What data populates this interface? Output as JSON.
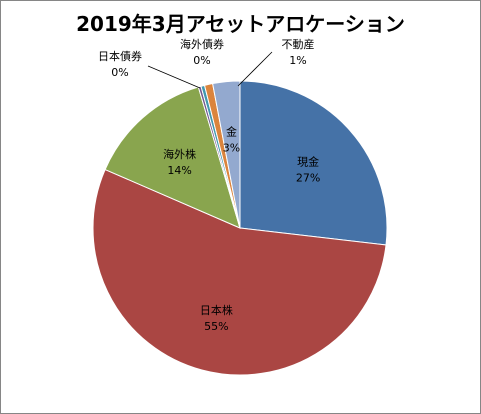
{
  "chart_data": {
    "type": "pie",
    "title": "2019年3月アセットアロケーション",
    "start_angle_deg": 0,
    "direction": "clockwise",
    "slices": [
      {
        "label": "現金",
        "value": 27,
        "display": "27%",
        "color": "#4572A7",
        "label_placement": "inside"
      },
      {
        "label": "日本株",
        "value": 55,
        "display": "55%",
        "color": "#AA4643",
        "label_placement": "inside"
      },
      {
        "label": "海外株",
        "value": 14,
        "display": "14%",
        "color": "#89A54E",
        "label_placement": "inside"
      },
      {
        "label": "日本債券",
        "value": 0.3,
        "display": "0%",
        "color": "#71588F",
        "label_placement": "outside-left"
      },
      {
        "label": "海外債券",
        "value": 0.4,
        "display": "0%",
        "color": "#4198AF",
        "label_placement": "outside-top"
      },
      {
        "label": "不動産",
        "value": 0.9,
        "display": "1%",
        "color": "#DB843D",
        "label_placement": "outside-top-right"
      },
      {
        "label": "金",
        "value": 3,
        "display": "3%",
        "color": "#93A9CF",
        "label_placement": "inside"
      }
    ],
    "legend": "none"
  }
}
